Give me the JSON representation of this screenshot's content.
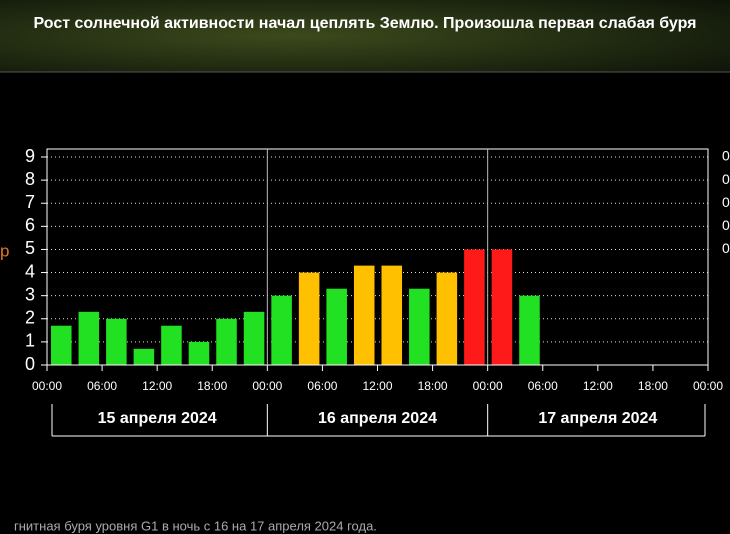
{
  "header": {
    "title": "Рост солнечной активности начал цеплять Землю. Произошла первая слабая буря"
  },
  "chart_data": {
    "type": "bar",
    "categories": [
      null,
      null,
      null,
      null,
      null,
      null,
      null,
      null,
      null,
      null,
      null,
      null,
      null,
      null,
      null,
      null,
      null,
      null,
      null,
      null,
      null,
      null,
      null,
      null
    ],
    "values": [
      1.7,
      2.3,
      2.0,
      0.7,
      1.7,
      1.0,
      2.0,
      2.3,
      3.0,
      4.0,
      3.3,
      4.3,
      4.3,
      3.3,
      4.0,
      5.0,
      5.0,
      3.0,
      null,
      null,
      null,
      null,
      null,
      null
    ],
    "colors": [
      "#22e022",
      "#22e022",
      "#22e022",
      "#22e022",
      "#22e022",
      "#22e022",
      "#22e022",
      "#22e022",
      "#22e022",
      "#ffc000",
      "#22e022",
      "#ffc000",
      "#ffc000",
      "#22e022",
      "#ffc000",
      "#ff1a1a",
      "#ff1a1a",
      "#22e022",
      null,
      null,
      null,
      null,
      null,
      null
    ],
    "xlim": [
      0,
      72
    ],
    "xticks": [
      {
        "value": 0,
        "label": "00:00"
      },
      {
        "value": 6,
        "label": "06:00"
      },
      {
        "value": 12,
        "label": "12:00"
      },
      {
        "value": 18,
        "label": "18:00"
      },
      {
        "value": 24,
        "label": "00:00"
      },
      {
        "value": 30,
        "label": "06:00"
      },
      {
        "value": 36,
        "label": "12:00"
      },
      {
        "value": 42,
        "label": "18:00"
      },
      {
        "value": 48,
        "label": "00:00"
      },
      {
        "value": 54,
        "label": "06:00"
      },
      {
        "value": 60,
        "label": "12:00"
      },
      {
        "value": 66,
        "label": "18:00"
      },
      {
        "value": 72,
        "label": "00:00"
      }
    ],
    "ylim": [
      0,
      9
    ],
    "yticks": [
      0,
      1,
      2,
      3,
      4,
      5,
      6,
      7,
      8,
      9
    ],
    "grid": true,
    "day_labels": [
      "15 апреля 2024",
      "16 апреля 2024",
      "17 апреля 2024"
    ],
    "left_label": "р",
    "right_labels": [
      "0",
      "0",
      "0",
      "0",
      "0"
    ]
  },
  "footer": {
    "caption": "гнитная буря уровня G1 в ночь с 16 на 17 апреля 2024 года."
  }
}
